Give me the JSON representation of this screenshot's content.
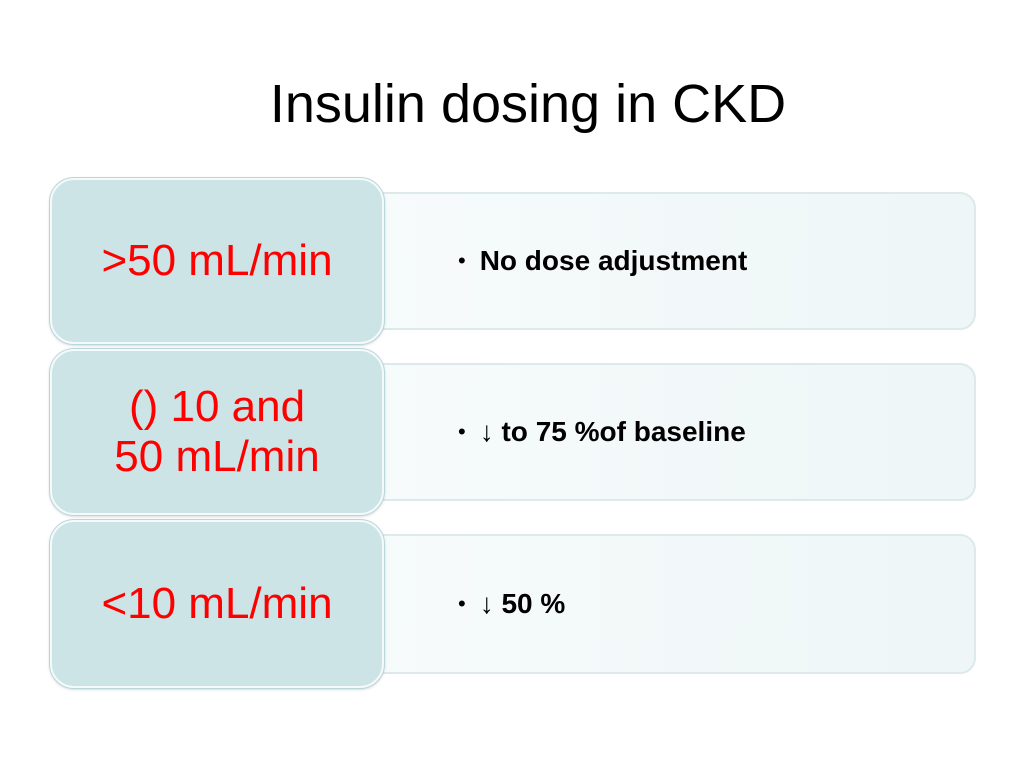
{
  "slide": {
    "title": "Insulin dosing in CKD"
  },
  "rows": [
    {
      "rate": ">50 mL/min",
      "bullet": "•",
      "recommendation": "No dose adjustment"
    },
    {
      "rate": "() 10 and\n50 mL/min",
      "bullet": "•",
      "recommendation": "↓ to  75 %of baseline"
    },
    {
      "rate": "<10 mL/min",
      "bullet": "•",
      "recommendation": "↓ 50 %"
    }
  ],
  "colors": {
    "rate_text": "#ff0000",
    "rate_box": "#cde4e7",
    "detail_panel": "#f7fbfb"
  }
}
